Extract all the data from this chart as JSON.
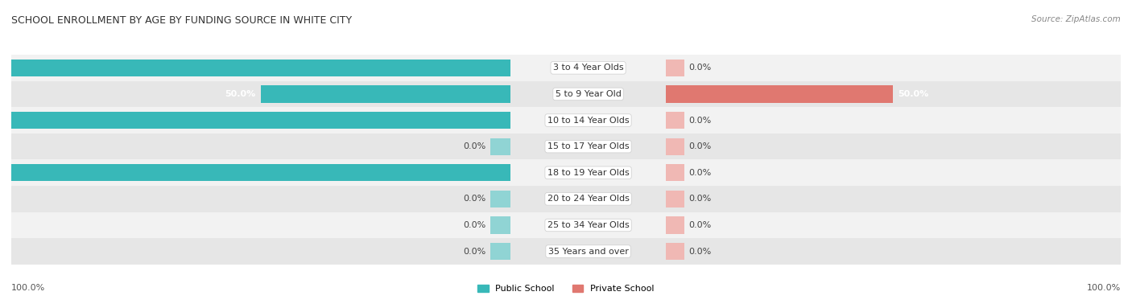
{
  "title": "SCHOOL ENROLLMENT BY AGE BY FUNDING SOURCE IN WHITE CITY",
  "source": "Source: ZipAtlas.com",
  "categories": [
    "3 to 4 Year Olds",
    "5 to 9 Year Old",
    "10 to 14 Year Olds",
    "15 to 17 Year Olds",
    "18 to 19 Year Olds",
    "20 to 24 Year Olds",
    "25 to 34 Year Olds",
    "35 Years and over"
  ],
  "public_values": [
    100.0,
    50.0,
    100.0,
    0.0,
    100.0,
    0.0,
    0.0,
    0.0
  ],
  "private_values": [
    0.0,
    50.0,
    0.0,
    0.0,
    0.0,
    0.0,
    0.0,
    0.0
  ],
  "public_color": "#38b8b8",
  "private_color": "#e07870",
  "public_color_light": "#90d4d4",
  "private_color_light": "#f0b8b4",
  "row_colors_odd": "#f2f2f2",
  "row_colors_even": "#e6e6e6",
  "label_fontsize": 8,
  "title_fontsize": 9,
  "legend_fontsize": 8,
  "footer_fontsize": 8,
  "bottom_left_label": "100.0%",
  "bottom_right_label": "100.0%",
  "max_val": 100.0
}
